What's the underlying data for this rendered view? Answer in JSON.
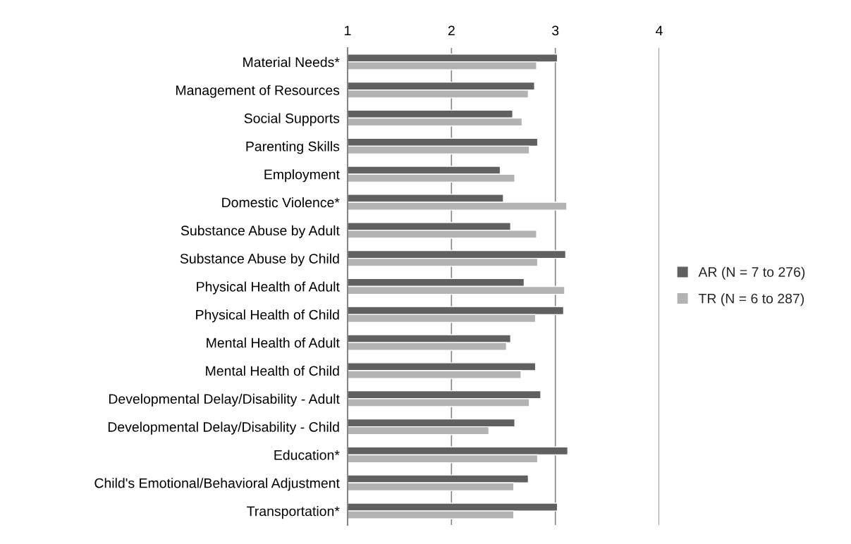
{
  "chart_data": {
    "type": "bar",
    "orientation": "horizontal",
    "categories": [
      "Material Needs*",
      "Management of Resources",
      "Social Supports",
      "Parenting Skills",
      "Employment",
      "Domestic Violence*",
      "Substance Abuse by Adult",
      "Substance Abuse by Child",
      "Physical Health of Adult",
      "Physical Health of Child",
      "Mental Health of Adult",
      "Mental Health of Child",
      "Developmental Delay/Disability - Adult",
      "Developmental Delay/Disability - Child",
      "Education*",
      "Child's Emotional/Behavioral Adjustment",
      "Transportation*"
    ],
    "series": [
      {
        "name": "AR (N = 7 to 276)",
        "color": "#606060",
        "values": [
          3.02,
          2.8,
          2.59,
          2.83,
          2.47,
          2.5,
          2.57,
          3.1,
          2.7,
          3.08,
          2.57,
          2.81,
          2.86,
          2.61,
          3.12,
          2.74,
          3.02
        ]
      },
      {
        "name": "TR (N = 6 to 287)",
        "color": "#b3b3b3",
        "values": [
          2.82,
          2.74,
          2.68,
          2.75,
          2.61,
          3.11,
          2.82,
          2.83,
          3.09,
          2.81,
          2.53,
          2.67,
          2.75,
          2.36,
          2.83,
          2.6,
          2.6
        ]
      }
    ],
    "xlim": [
      1,
      4
    ],
    "xticks": [
      1,
      2,
      3,
      4
    ],
    "grid": "x",
    "legend": "right"
  }
}
